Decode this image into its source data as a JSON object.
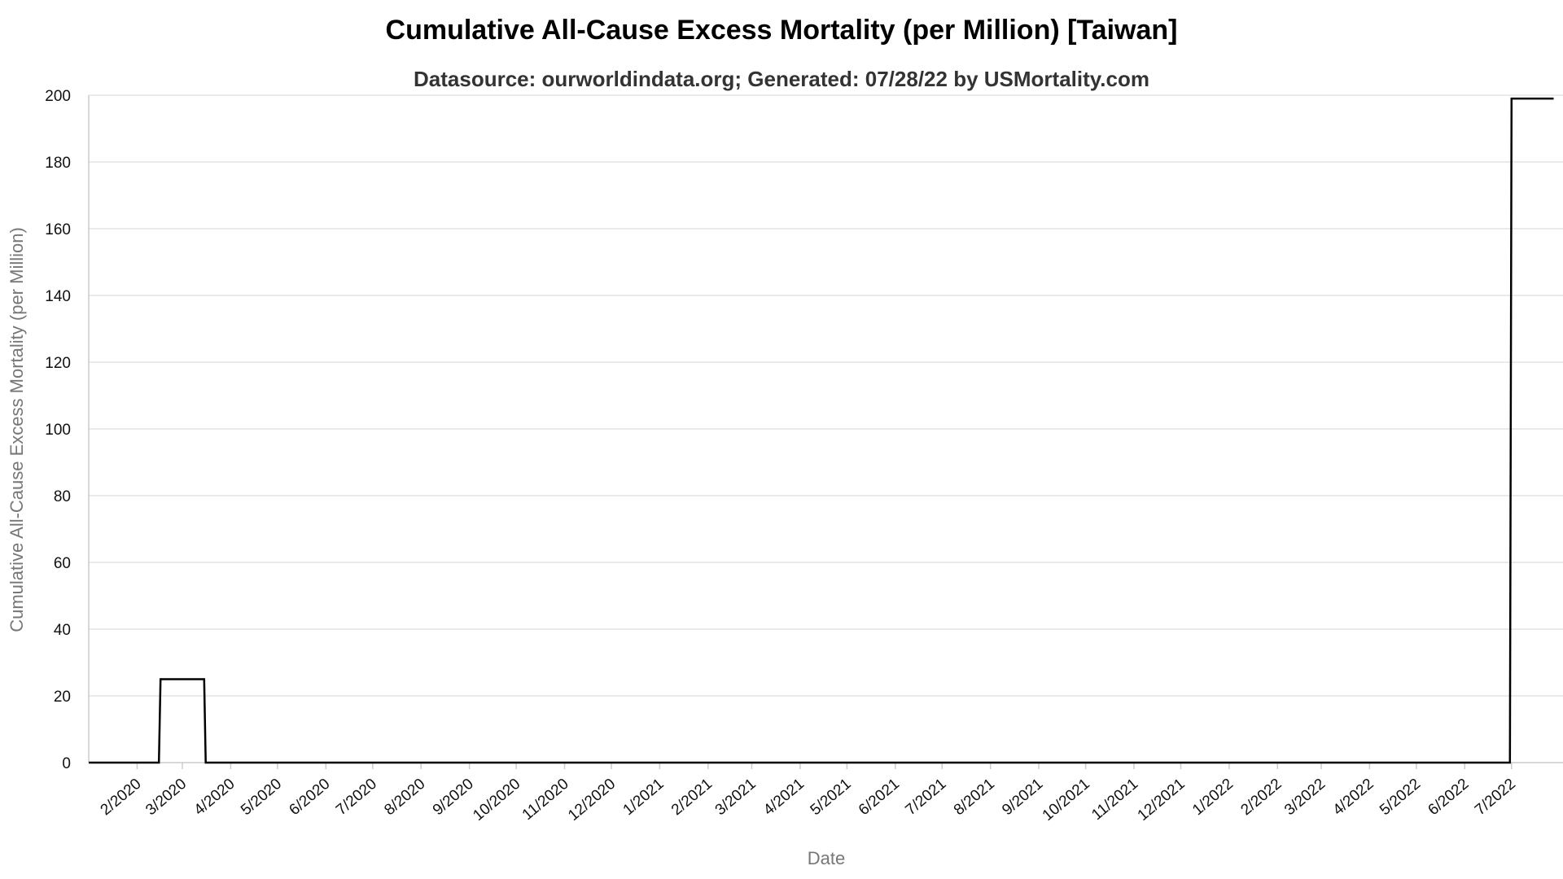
{
  "chart_data": {
    "type": "line",
    "title": "Cumulative All-Cause Excess Mortality (per Million) [Taiwan]",
    "subtitle": "Datasource: ourworldindata.org; Generated: 07/28/22 by USMortality.com",
    "xlabel": "Date",
    "ylabel": "Cumulative All-Cause Excess Mortality (per Million)",
    "ylim": [
      0,
      200
    ],
    "yticks": [
      0,
      20,
      40,
      60,
      80,
      100,
      120,
      140,
      160,
      180,
      200
    ],
    "xticks": [
      "2/2020",
      "3/2020",
      "4/2020",
      "5/2020",
      "6/2020",
      "7/2020",
      "8/2020",
      "9/2020",
      "10/2020",
      "11/2020",
      "12/2020",
      "1/2021",
      "2/2021",
      "3/2021",
      "4/2021",
      "5/2021",
      "6/2021",
      "7/2021",
      "8/2021",
      "9/2021",
      "10/2021",
      "11/2021",
      "12/2021",
      "1/2022",
      "2/2022",
      "3/2022",
      "4/2022",
      "5/2022",
      "6/2022",
      "7/2022"
    ],
    "grid": true,
    "series": [
      {
        "x": [
          "2020-01-01",
          "2020-01-15",
          "2020-02-15",
          "2020-02-16",
          "2020-03-15",
          "2020-03-16",
          "2022-06-30",
          "2022-07-01",
          "2022-07-28"
        ],
        "y": [
          0,
          0,
          0,
          25,
          25,
          0,
          0,
          199,
          199
        ],
        "color": "#000000"
      }
    ]
  }
}
